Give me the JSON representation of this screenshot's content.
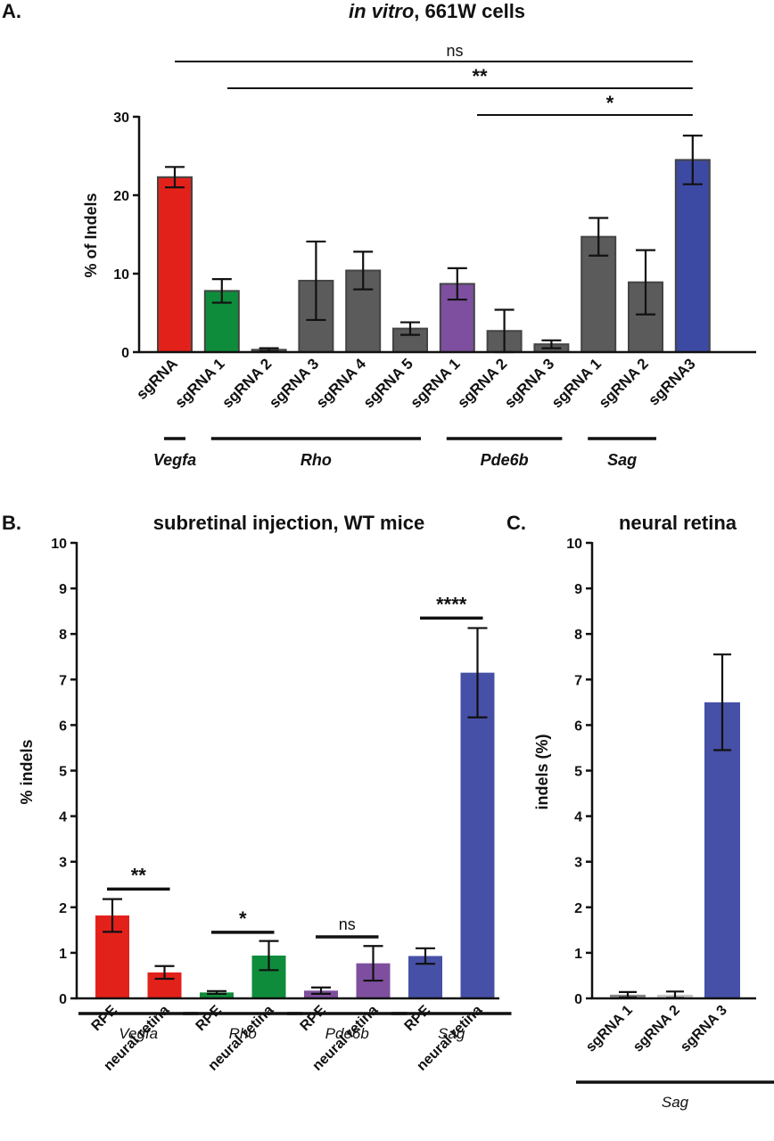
{
  "chart_data": [
    {
      "panel": "A.",
      "type": "bar",
      "title": "in vitro, 661W cells",
      "title_italic_part": "in vitro",
      "title_rest": ", 661W cells",
      "ylabel": "% of Indels",
      "ylim": [
        0,
        30
      ],
      "yticks": [
        0,
        10,
        20,
        30
      ],
      "categories": [
        "sgRNA",
        "sgRNA 1",
        "sgRNA 2",
        "sgRNA 3",
        "sgRNA 4",
        "sgRNA 5",
        "sgRNA 1",
        "sgRNA 2",
        "sgRNA 3",
        "sgRNA 1",
        "sgRNA 2",
        "sgRNA3"
      ],
      "values": [
        22.3,
        7.8,
        0.3,
        9.1,
        10.4,
        3.0,
        8.7,
        2.7,
        1.0,
        14.7,
        8.9,
        24.5
      ],
      "errors": [
        1.3,
        1.5,
        0.2,
        5.0,
        2.4,
        0.8,
        2.0,
        2.7,
        0.5,
        2.4,
        4.1,
        3.1
      ],
      "colors": [
        "#e3211b",
        "#0f8c3b",
        "#5b5b5b",
        "#5b5b5b",
        "#5b5b5b",
        "#5b5b5b",
        "#7e4f9e",
        "#5b5b5b",
        "#5b5b5b",
        "#5b5b5b",
        "#5b5b5b",
        "#3c4aa3"
      ],
      "groups": [
        {
          "label": "Vegfa",
          "from": 0,
          "to": 0
        },
        {
          "label": "Rho",
          "from": 1,
          "to": 5
        },
        {
          "label": "Pde6b",
          "from": 6,
          "to": 8
        },
        {
          "label": "Sag",
          "from": 9,
          "to": 10
        }
      ],
      "significance": [
        {
          "label": "ns",
          "from": 1,
          "to": 11,
          "level": 0
        },
        {
          "label": "**",
          "from": 2,
          "to": 11,
          "level": 1
        },
        {
          "label": "*",
          "from": 7,
          "to": 11,
          "level": 2
        }
      ]
    },
    {
      "panel": "B.",
      "type": "bar",
      "title": "subretinal injection, WT mice",
      "ylabel": "% indels",
      "ylim": [
        0,
        10
      ],
      "yticks": [
        0,
        1,
        2,
        3,
        4,
        5,
        6,
        7,
        8,
        9,
        10
      ],
      "categories": [
        "RPE",
        "neural retina",
        "RPE",
        "neural retina",
        "RPE",
        "neural retina",
        "RPE",
        "neural retina"
      ],
      "values": [
        1.82,
        0.57,
        0.13,
        0.94,
        0.17,
        0.77,
        0.93,
        7.15
      ],
      "errors": [
        0.36,
        0.14,
        0.03,
        0.32,
        0.07,
        0.38,
        0.17,
        0.98
      ],
      "colors": [
        "#e3211b",
        "#e3211b",
        "#0f8c3b",
        "#0f8c3b",
        "#7e4f9e",
        "#7e4f9e",
        "#4650a6",
        "#4650a6"
      ],
      "groups": [
        {
          "label": "Vegfa",
          "from": 0,
          "to": 1
        },
        {
          "label": "Rho",
          "from": 2,
          "to": 3
        },
        {
          "label": "Pde6b",
          "from": 4,
          "to": 5
        },
        {
          "label": "Sag",
          "from": 6,
          "to": 7
        }
      ],
      "significance": [
        {
          "label": "**",
          "from": 0,
          "to": 1,
          "y": 2.4
        },
        {
          "label": "*",
          "from": 2,
          "to": 3,
          "y": 1.45
        },
        {
          "label": "ns",
          "from": 4,
          "to": 5,
          "y": 1.35
        },
        {
          "label": "****",
          "from": 6,
          "to": 7,
          "y": 8.35
        }
      ]
    },
    {
      "panel": "C.",
      "type": "bar",
      "title": "neural retina",
      "ylabel": "indels (%)",
      "ylim": [
        0,
        10
      ],
      "yticks": [
        0,
        1,
        2,
        3,
        4,
        5,
        6,
        7,
        8,
        9,
        10
      ],
      "categories": [
        "sgRNA 1",
        "sgRNA 2",
        "sgRNA 3"
      ],
      "values": [
        0.08,
        0.08,
        6.5
      ],
      "errors": [
        0.06,
        0.07,
        1.05
      ],
      "colors": [
        "#888888",
        "#c8c8c8",
        "#4650a6"
      ],
      "groups": [
        {
          "label": "Sag",
          "from": 0,
          "to": 2
        }
      ]
    }
  ]
}
